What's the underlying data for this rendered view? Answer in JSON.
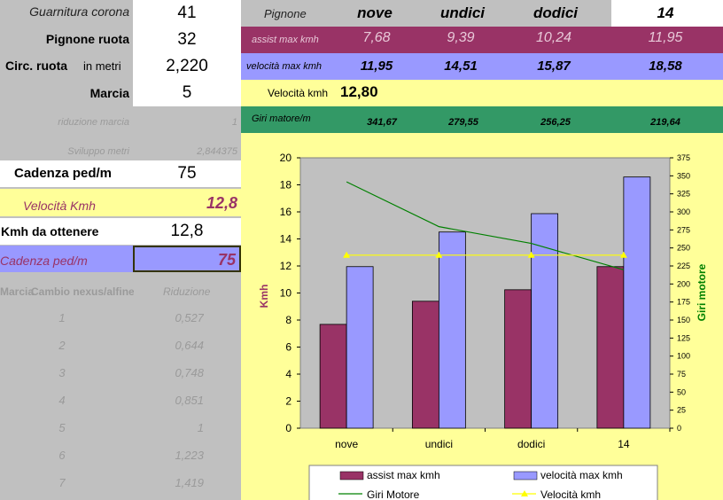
{
  "left": {
    "rows": [
      {
        "label": "Guarnitura corona",
        "value": "41"
      },
      {
        "label": "Pignone ruota",
        "value": "32"
      },
      {
        "label": "Circ. ruota",
        "label_suffix": "in metri",
        "value": "2,220"
      },
      {
        "label": "Marcia",
        "value": "5"
      }
    ],
    "riduzione_label": "riduzione marcia",
    "riduzione_value": "1",
    "sviluppo_label": "Sviluppo metri",
    "sviluppo_value": "2,844375",
    "cadenza_label": "Cadenza ped/m",
    "cadenza_value": "75",
    "velocita_label": "Velocità  Kmh",
    "velocita_value": "12,8",
    "kmh_label": "Kmh da ottenere",
    "kmh_value": "12,8",
    "cadenza2_label": "Cadenza ped/m",
    "cadenza2_value": "75",
    "table_header_a": "Marcia",
    "table_header_b": "Cambio nexus/alfine",
    "table_header_c": "Riduzione",
    "table_rows": [
      {
        "n": "1",
        "v": "0,527"
      },
      {
        "n": "2",
        "v": "0,644"
      },
      {
        "n": "3",
        "v": "0,748"
      },
      {
        "n": "4",
        "v": "0,851"
      },
      {
        "n": "5",
        "v": "1"
      },
      {
        "n": "6",
        "v": "1,223"
      },
      {
        "n": "7",
        "v": "1,419"
      }
    ]
  },
  "right": {
    "pignone_label": "Pignone",
    "cols": [
      "nove",
      "undici",
      "dodici",
      "14"
    ],
    "assist_label": "assist max kmh",
    "assist_vals": [
      "7,68",
      "9,39",
      "10,24",
      "11,95"
    ],
    "vel_label": "velocità max kmh",
    "vel_vals": [
      "11,95",
      "14,51",
      "15,87",
      "18,58"
    ],
    "velkmh_label": "Velocità kmh",
    "velkmh_value": "12,80",
    "giri_label": "Giri matore/m",
    "giri_vals": [
      "341,67",
      "279,55",
      "256,25",
      "219,64"
    ]
  },
  "chart_data": {
    "type": "bar",
    "categories": [
      "nove",
      "undici",
      "dodici",
      "14"
    ],
    "series": [
      {
        "name": "assist max kmh",
        "kind": "bar",
        "axis": "left",
        "color": "#993366",
        "values": [
          7.68,
          9.39,
          10.24,
          11.95
        ]
      },
      {
        "name": "velocità max kmh",
        "kind": "bar",
        "axis": "left",
        "color": "#9999ff",
        "values": [
          11.95,
          14.51,
          15.87,
          18.58
        ]
      },
      {
        "name": "Giri Motore",
        "kind": "line",
        "axis": "right",
        "color": "#008000",
        "values": [
          341.67,
          279.55,
          256.25,
          219.64
        ]
      },
      {
        "name": "Velocità kmh",
        "kind": "line",
        "axis": "left",
        "marker": "triangle",
        "color": "#ffff00",
        "values": [
          12.8,
          12.8,
          12.8,
          12.8
        ]
      }
    ],
    "ylabel": "Kmh",
    "y2label": "Giri motore",
    "ylim": [
      0,
      20
    ],
    "y2lim": [
      0,
      375
    ],
    "yticks": [
      "0",
      "2",
      "4",
      "6",
      "8",
      "10",
      "12",
      "14",
      "16",
      "18",
      "20"
    ],
    "y2ticks": [
      "0",
      "25",
      "50",
      "75",
      "100",
      "125",
      "150",
      "175",
      "200",
      "225",
      "250",
      "275",
      "300",
      "325",
      "350",
      "375"
    ],
    "legend_position": "bottom"
  }
}
